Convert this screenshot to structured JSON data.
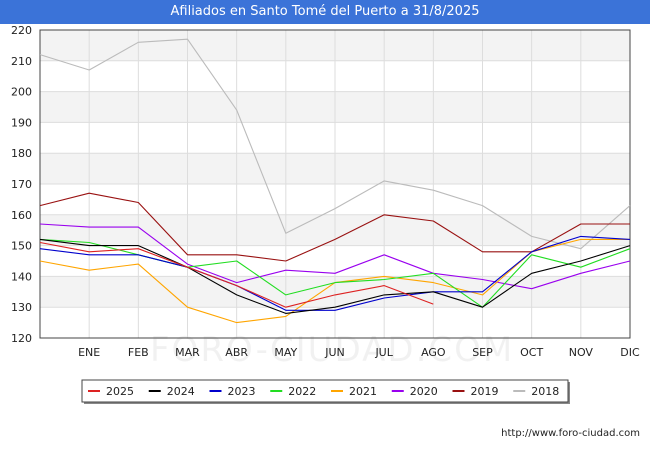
{
  "title": "Afiliados en Santo Tomé del Puerto a 31/8/2025",
  "watermark": "FORO-CIUDAD.COM",
  "credit": "http://www.foro-ciudad.com",
  "chart_data": {
    "type": "line",
    "x": [
      "",
      "ENE",
      "FEB",
      "MAR",
      "ABR",
      "MAY",
      "JUN",
      "JUL",
      "AGO",
      "SEP",
      "OCT",
      "NOV",
      "DIC"
    ],
    "ylim": [
      120,
      220
    ],
    "yticks": [
      120,
      130,
      140,
      150,
      160,
      170,
      180,
      190,
      200,
      210,
      220
    ],
    "grid": true,
    "legend_position": "bottom",
    "series": [
      {
        "name": "2025",
        "color": "#dd2222",
        "values": [
          151,
          148,
          149,
          143,
          137,
          130,
          134,
          137,
          131,
          null,
          null,
          null,
          null
        ]
      },
      {
        "name": "2024",
        "color": "#000000",
        "values": [
          152,
          150,
          150,
          143,
          134,
          128,
          130,
          134,
          135,
          130,
          141,
          145,
          150
        ]
      },
      {
        "name": "2023",
        "color": "#0000cc",
        "values": [
          149,
          147,
          147,
          143,
          137,
          129,
          129,
          133,
          135,
          135,
          148,
          153,
          152
        ]
      },
      {
        "name": "2022",
        "color": "#22dd22",
        "values": [
          152,
          151,
          147,
          143,
          145,
          134,
          138,
          139,
          141,
          130,
          147,
          143,
          149
        ]
      },
      {
        "name": "2021",
        "color": "#ffa500",
        "values": [
          145,
          142,
          144,
          130,
          125,
          127,
          138,
          140,
          138,
          134,
          148,
          152,
          152
        ]
      },
      {
        "name": "2020",
        "color": "#9900ee",
        "values": [
          157,
          156,
          156,
          144,
          138,
          142,
          141,
          147,
          141,
          139,
          136,
          141,
          145
        ]
      },
      {
        "name": "2019",
        "color": "#991111",
        "values": [
          163,
          167,
          164,
          147,
          147,
          145,
          152,
          160,
          158,
          148,
          148,
          157,
          157
        ]
      },
      {
        "name": "2018",
        "color": "#bbbbbb",
        "values": [
          212,
          207,
          216,
          217,
          194,
          154,
          162,
          171,
          168,
          163,
          153,
          149,
          163
        ]
      }
    ]
  }
}
